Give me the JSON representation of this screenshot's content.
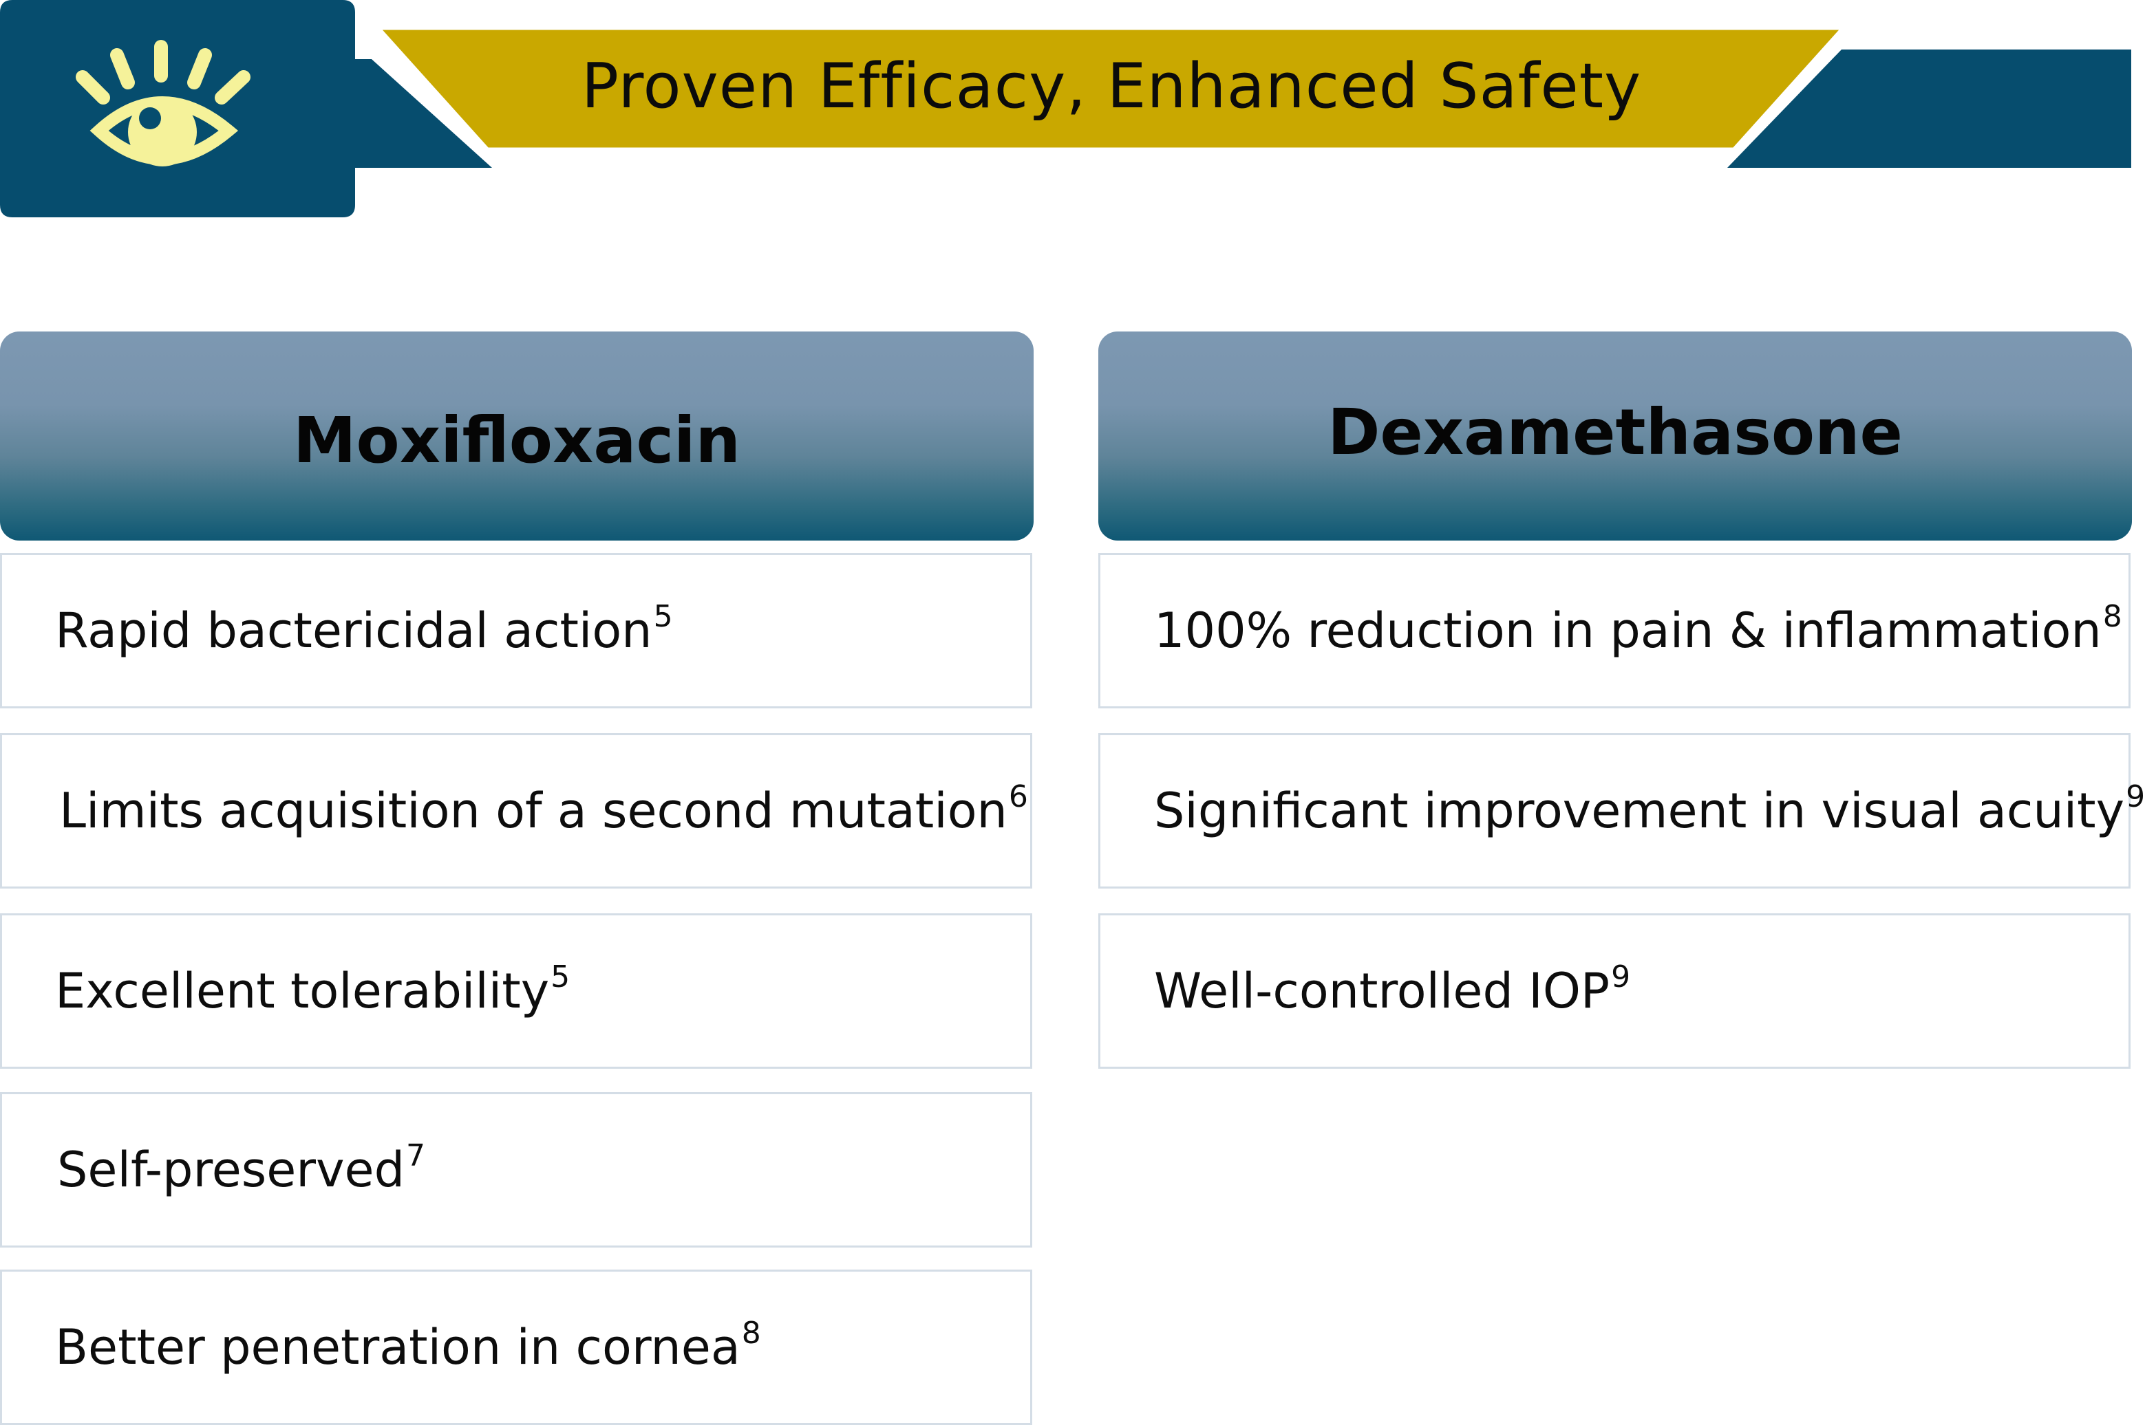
{
  "banner": {
    "title": "Proven Efficacy, Enhanced Safety",
    "icon": "eye-icon",
    "colors": {
      "navy": "#064d6e",
      "gold": "#c9a800",
      "icon": "#f5f29a"
    }
  },
  "columns": [
    {
      "title": "Moxifloxacin",
      "items": [
        {
          "text": "Rapid bactericidal action",
          "ref": "5"
        },
        {
          "text": "Limits acquisition of a second mutation",
          "ref": "6"
        },
        {
          "text": "Excellent tolerability",
          "ref": "5"
        },
        {
          "text": "Self-preserved",
          "ref": "7"
        },
        {
          "text": "Better penetration in cornea",
          "ref": "8"
        }
      ]
    },
    {
      "title": "Dexamethasone",
      "items": [
        {
          "text": "100% reduction in pain & inflammation",
          "ref": "8"
        },
        {
          "text": "Significant improvement in visual acuity",
          "ref": "9"
        },
        {
          "text": "Well-controlled IOP",
          "ref": "9"
        }
      ]
    }
  ]
}
